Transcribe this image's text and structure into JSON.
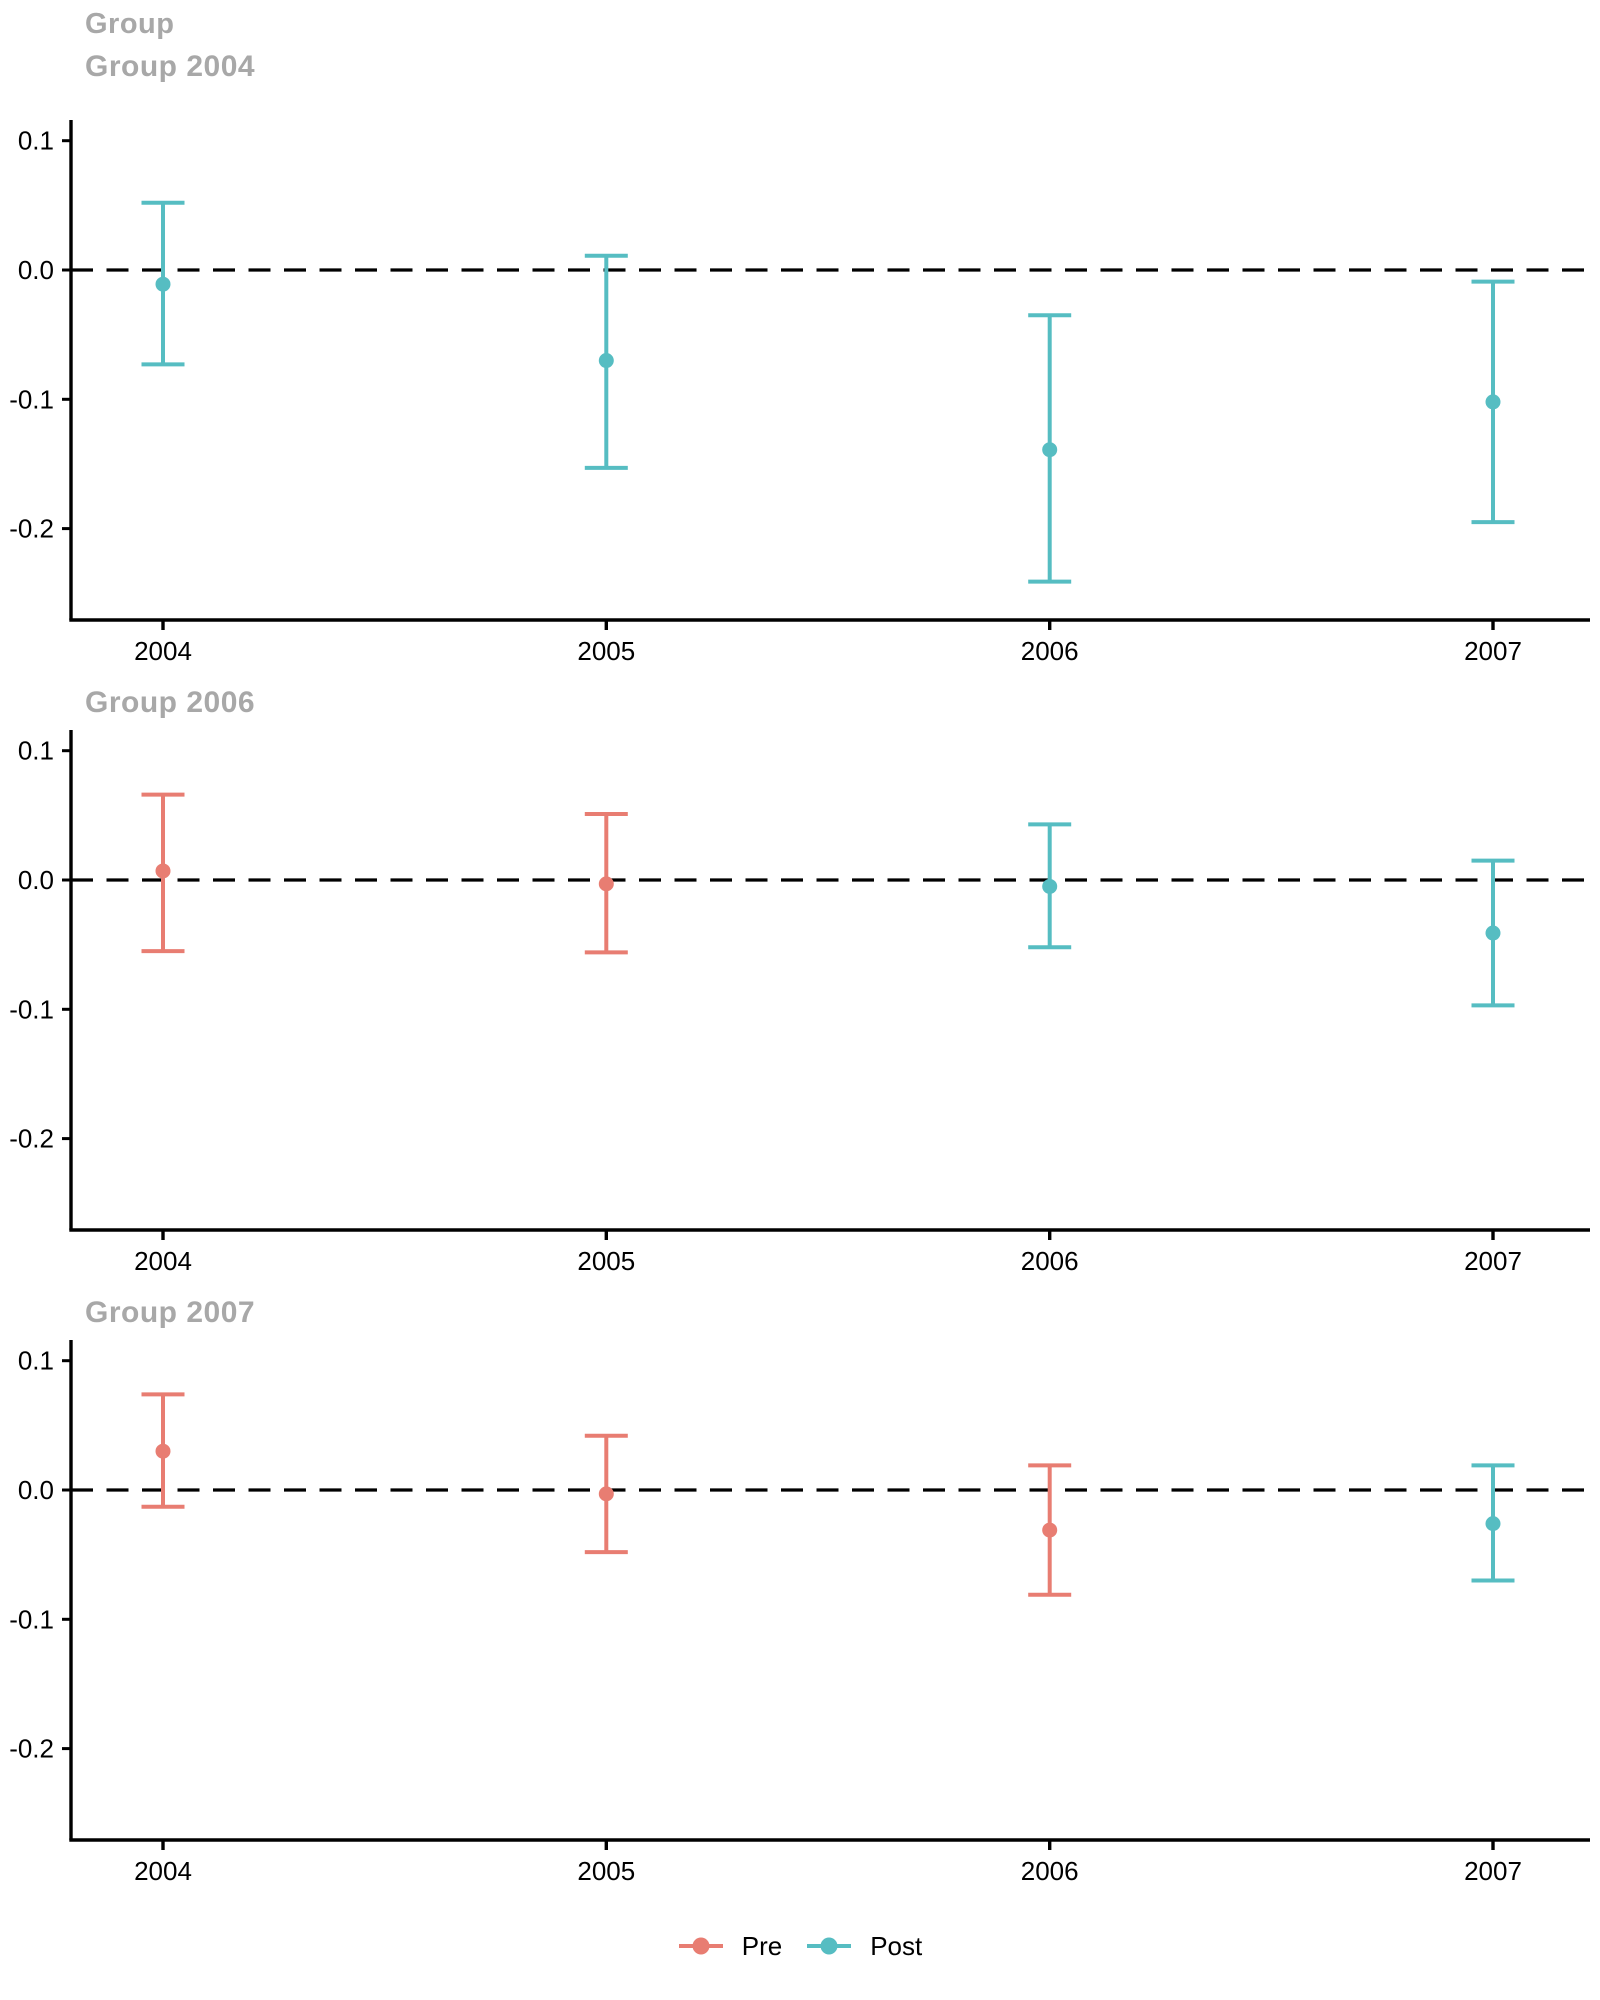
{
  "title": "Group",
  "legend": {
    "items": [
      {
        "label": "Pre",
        "color": "#e87d72"
      },
      {
        "label": "Post",
        "color": "#56bdc2"
      }
    ]
  },
  "chart_data": {
    "type": "errorbar",
    "title": "Group",
    "subtitle": "",
    "x_categories": [
      "2004",
      "2005",
      "2006",
      "2007"
    ],
    "xlabel": "",
    "ylabel": "",
    "y_tick_labels": [
      "0.1",
      "0.0",
      "-0.1",
      "-0.2"
    ],
    "y_tick_values": [
      0.1,
      0.0,
      -0.1,
      -0.2
    ],
    "ylim": [
      -0.27,
      0.116
    ],
    "grid": false,
    "zero_line": {
      "value": 0.0,
      "style": "dashed",
      "color": "#000000"
    },
    "legend_position": "bottom",
    "series_colors": {
      "Pre": "#e87d72",
      "Post": "#56bdc2"
    },
    "panels": [
      {
        "title": "Group 2004",
        "points": [
          {
            "x": "2004",
            "series": "Post",
            "estimate": -0.011,
            "ci_low": -0.073,
            "ci_high": 0.052
          },
          {
            "x": "2005",
            "series": "Post",
            "estimate": -0.07,
            "ci_low": -0.153,
            "ci_high": 0.011
          },
          {
            "x": "2006",
            "series": "Post",
            "estimate": -0.139,
            "ci_low": -0.241,
            "ci_high": -0.035
          },
          {
            "x": "2007",
            "series": "Post",
            "estimate": -0.102,
            "ci_low": -0.195,
            "ci_high": -0.009
          }
        ]
      },
      {
        "title": "Group 2006",
        "points": [
          {
            "x": "2004",
            "series": "Pre",
            "estimate": 0.007,
            "ci_low": -0.055,
            "ci_high": 0.066
          },
          {
            "x": "2005",
            "series": "Pre",
            "estimate": -0.003,
            "ci_low": -0.056,
            "ci_high": 0.051
          },
          {
            "x": "2006",
            "series": "Post",
            "estimate": -0.005,
            "ci_low": -0.052,
            "ci_high": 0.043
          },
          {
            "x": "2007",
            "series": "Post",
            "estimate": -0.041,
            "ci_low": -0.097,
            "ci_high": 0.015
          }
        ]
      },
      {
        "title": "Group 2007",
        "points": [
          {
            "x": "2004",
            "series": "Pre",
            "estimate": 0.03,
            "ci_low": -0.013,
            "ci_high": 0.074
          },
          {
            "x": "2005",
            "series": "Pre",
            "estimate": -0.003,
            "ci_low": -0.048,
            "ci_high": 0.042
          },
          {
            "x": "2006",
            "series": "Pre",
            "estimate": -0.031,
            "ci_low": -0.081,
            "ci_high": 0.019
          },
          {
            "x": "2007",
            "series": "Post",
            "estimate": -0.026,
            "ci_low": -0.07,
            "ci_high": 0.019
          }
        ]
      }
    ]
  }
}
